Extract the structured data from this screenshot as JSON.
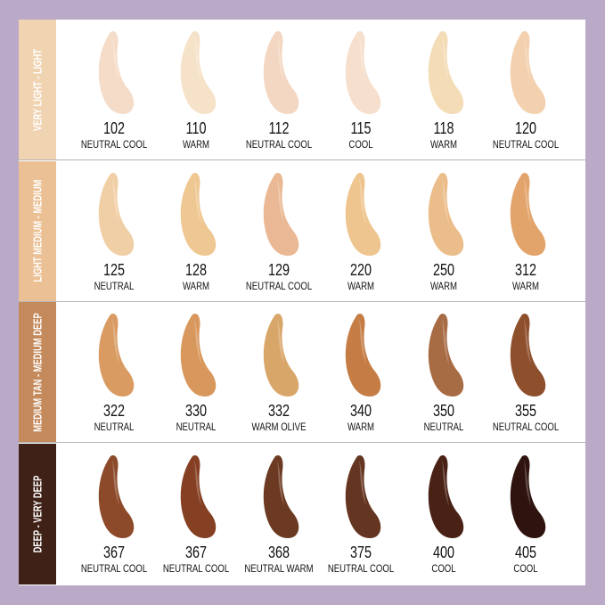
{
  "rows": [
    {
      "label": "VERY LIGHT - LIGHT",
      "color": "#f0d3b1",
      "shades": [
        {
          "number": "102",
          "tone": "NEUTRAL COOL",
          "color": "#f5dcc8"
        },
        {
          "number": "110",
          "tone": "WARM",
          "color": "#f6e2c8"
        },
        {
          "number": "112",
          "tone": "NEUTRAL COOL",
          "color": "#f3d7c2"
        },
        {
          "number": "115",
          "tone": "COOL",
          "color": "#f6dfcd"
        },
        {
          "number": "118",
          "tone": "WARM",
          "color": "#f3dcb6"
        },
        {
          "number": "120",
          "tone": "NEUTRAL COOL",
          "color": "#f3d0ae"
        }
      ]
    },
    {
      "label": "LIGHT MEDIUM - MEDIUM",
      "color": "#ebc094",
      "shades": [
        {
          "number": "125",
          "tone": "NEUTRAL",
          "color": "#f1cfa6"
        },
        {
          "number": "128",
          "tone": "WARM",
          "color": "#efc792"
        },
        {
          "number": "129",
          "tone": "NEUTRAL COOL",
          "color": "#eab894"
        },
        {
          "number": "220",
          "tone": "WARM",
          "color": "#efc58f"
        },
        {
          "number": "250",
          "tone": "WARM",
          "color": "#ebbd8a"
        },
        {
          "number": "312",
          "tone": "WARM",
          "color": "#e3a46c"
        }
      ]
    },
    {
      "label": "MEDIUM TAN - MEDIUM DEEP",
      "color": "#c48a5c",
      "shades": [
        {
          "number": "322",
          "tone": "NEUTRAL",
          "color": "#d99b62"
        },
        {
          "number": "330",
          "tone": "NEUTRAL",
          "color": "#d8975c"
        },
        {
          "number": "332",
          "tone": "WARM OLIVE",
          "color": "#d9a66a"
        },
        {
          "number": "340",
          "tone": "WARM",
          "color": "#c57d45"
        },
        {
          "number": "350",
          "tone": "NEUTRAL",
          "color": "#a86c45"
        },
        {
          "number": "355",
          "tone": "NEUTRAL COOL",
          "color": "#8e4f2c"
        }
      ]
    },
    {
      "label": "DEEP - VERY DEEP",
      "color": "#3f2118",
      "shades": [
        {
          "number": "367",
          "tone": "NEUTRAL COOL",
          "color": "#8c4a2a"
        },
        {
          "number": "367",
          "tone": "NEUTRAL COOL",
          "color": "#853f22"
        },
        {
          "number": "368",
          "tone": "NEUTRAL WARM",
          "color": "#6c3a22"
        },
        {
          "number": "375",
          "tone": "NEUTRAL COOL",
          "color": "#643520"
        },
        {
          "number": "400",
          "tone": "COOL",
          "color": "#4a2115"
        },
        {
          "number": "405",
          "tone": "COOL",
          "color": "#2f130e"
        }
      ]
    }
  ]
}
